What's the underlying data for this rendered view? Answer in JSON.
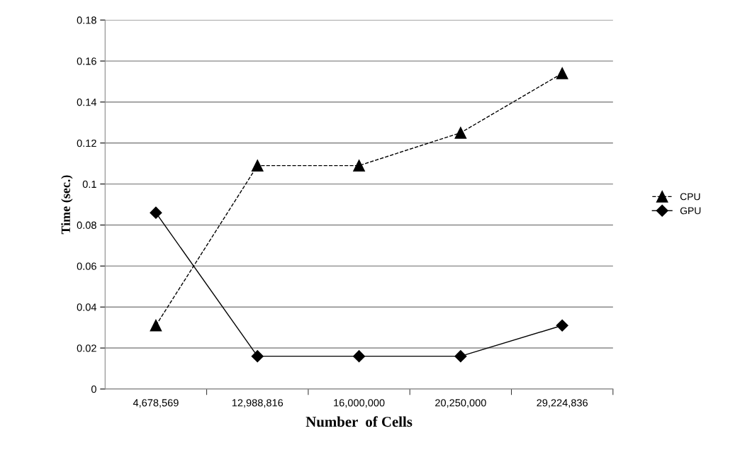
{
  "chart_data": {
    "type": "line",
    "xlabel": "Number  of Cells",
    "ylabel": "Time (sec.)",
    "categories": [
      "4,678,569",
      "12,988,816",
      "16,000,000",
      "20,250,000",
      "29,224,836"
    ],
    "series": [
      {
        "name": "CPU",
        "color": "#000000",
        "marker": "triangle",
        "line_style": "dashed",
        "values": [
          0.031,
          0.109,
          0.109,
          0.125,
          0.154
        ]
      },
      {
        "name": "GPU",
        "color": "#000000",
        "marker": "diamond",
        "line_style": "solid",
        "values": [
          0.086,
          0.016,
          0.016,
          0.016,
          0.031
        ]
      }
    ],
    "ylim": [
      0,
      0.18
    ],
    "yticks": [
      0,
      0.02,
      0.04,
      0.06,
      0.08,
      0.1,
      0.12,
      0.14,
      0.16,
      0.18
    ],
    "grid": "y",
    "legend": "right"
  }
}
